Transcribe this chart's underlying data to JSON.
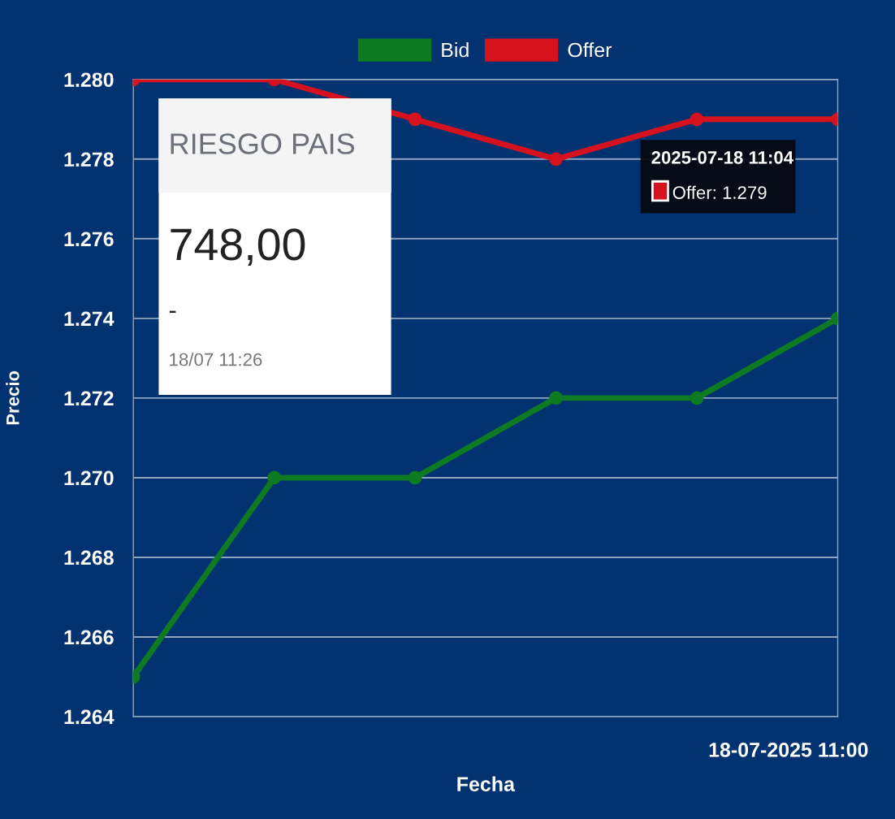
{
  "chart_data": {
    "type": "line",
    "xlabel": "Fecha",
    "ylabel": "Precio",
    "categories": [
      null,
      null,
      null,
      null,
      null,
      null
    ],
    "series": [
      {
        "name": "Bid",
        "color": "#0e7a22",
        "values": [
          1.265,
          1.27,
          1.27,
          1.272,
          1.272,
          1.274
        ]
      },
      {
        "name": "Offer",
        "color": "#d5121e",
        "values": [
          1.28,
          1.28,
          1.279,
          1.278,
          1.279,
          1.279
        ]
      }
    ],
    "ylim": [
      1.264,
      1.28
    ],
    "yticks": [
      {
        "value": 1.264,
        "label": "1.264"
      },
      {
        "value": 1.266,
        "label": "1.266"
      },
      {
        "value": 1.268,
        "label": "1.268"
      },
      {
        "value": 1.27,
        "label": "1.270"
      },
      {
        "value": 1.272,
        "label": "1.272"
      },
      {
        "value": 1.274,
        "label": "1.274"
      },
      {
        "value": 1.276,
        "label": "1.276"
      },
      {
        "value": 1.278,
        "label": "1.278"
      },
      {
        "value": 1.28,
        "label": "1.280"
      }
    ],
    "grid": true,
    "legend": "top",
    "marker": "circle",
    "line_style": "solid",
    "annotations": [
      "RIESGO PAIS",
      "748,00",
      "-",
      "18/07 11:26",
      "2025-07-18 11:04",
      "Offer: 1.279",
      "18-07-2025 11:00"
    ]
  }
}
